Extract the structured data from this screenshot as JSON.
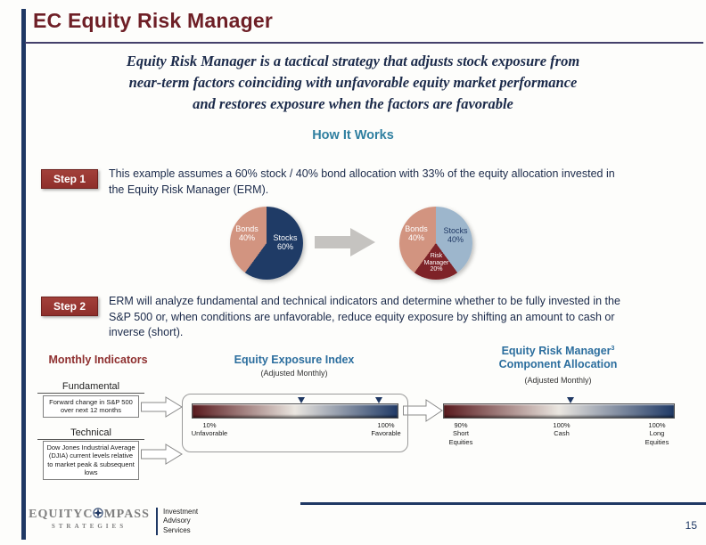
{
  "slide": {
    "title": "EC Equity Risk Manager",
    "intro_lines": [
      "Equity Risk Manager is a tactical strategy that adjusts stock exposure from",
      "near-term factors coinciding with unfavorable equity market performance",
      "and restores exposure when the factors are favorable"
    ],
    "section_heading": "How It Works",
    "page_number": "15"
  },
  "steps": [
    {
      "label": "Step 1",
      "text": "This example assumes a 60% stock / 40% bond allocation with 33% of the equity allocation invested in the Equity Risk Manager (ERM)."
    },
    {
      "label": "Step 2",
      "text": "ERM will analyze fundamental and technical indicators and determine whether to be fully invested in the S&P 500 or, when conditions are unfavorable, reduce equity exposure by shifting an amount to cash or inverse (short)."
    }
  ],
  "columns": {
    "left": {
      "heading": "Monthly Indicators"
    },
    "middle": {
      "heading": "Equity Exposure Index",
      "subheading": "(Adjusted Monthly)"
    },
    "right": {
      "heading_line1": "Equity Risk Manager",
      "footnote": "3",
      "heading_line2": "Component Allocation",
      "subheading": "(Adjusted Monthly)"
    }
  },
  "indicators": [
    {
      "title": "Fundamental",
      "text": "Forward change in S&P 500 over next 12 months"
    },
    {
      "title": "Technical",
      "text": "Dow Jones Industrial Average (DJIA) current levels relative to market peak & subsequent lows"
    }
  ],
  "chart_data": [
    {
      "type": "pie",
      "name": "initial-allocation",
      "slices": [
        {
          "name": "Stocks",
          "pct": 60,
          "pct_label": "60%",
          "color": "#1F3B66"
        },
        {
          "name": "Bonds",
          "pct": 40,
          "pct_label": "40%",
          "color": "#D29480"
        }
      ]
    },
    {
      "type": "pie",
      "name": "allocation-with-erm",
      "slices": [
        {
          "name": "Stocks",
          "pct": 40,
          "pct_label": "40%",
          "color": "#9DB6CC"
        },
        {
          "name": "Risk Manager",
          "pct": 20,
          "pct_label": "20%",
          "color": "#7E2328"
        },
        {
          "name": "Bonds",
          "pct": 40,
          "pct_label": "40%",
          "color": "#D29480"
        }
      ]
    },
    {
      "type": "gradient-scale",
      "name": "equity-exposure-index",
      "gradient": [
        "#591A1E",
        "#EAE6E0",
        "#203A66"
      ],
      "markers_pct": [
        53,
        91
      ],
      "labels": [
        {
          "lines": [
            "10%",
            "Unfavorable"
          ]
        },
        {
          "lines": [
            "100%",
            "Favorable"
          ]
        }
      ]
    },
    {
      "type": "gradient-scale",
      "name": "erm-component-allocation",
      "gradient": [
        "#591A1E",
        "#EAE6E0",
        "#203A66"
      ],
      "markers_pct": [
        55
      ],
      "labels": [
        {
          "lines": [
            "90%",
            "Short",
            "Equities"
          ]
        },
        {
          "lines": [
            "100%",
            "Cash"
          ]
        },
        {
          "lines": [
            "100%",
            "Long",
            "Equities"
          ]
        }
      ]
    }
  ],
  "footer": {
    "logo_text_1": "EQUITYC",
    "logo_text_2": "MPASS",
    "logo_sub": "STRATEGIES",
    "services_lines": [
      "Investment",
      "Advisory",
      "Services"
    ]
  },
  "colors": {
    "title_maroon": "#6E1F26",
    "divider": "#44406B",
    "navy": "#1F3864",
    "teal_heading": "#2F7FA0",
    "column_blue": "#2C6E9E",
    "column_maroon": "#8E2F2F",
    "step_red": "#A2403A",
    "step_red_dark": "#6E211E",
    "text_dark": "#1B2A4A"
  }
}
